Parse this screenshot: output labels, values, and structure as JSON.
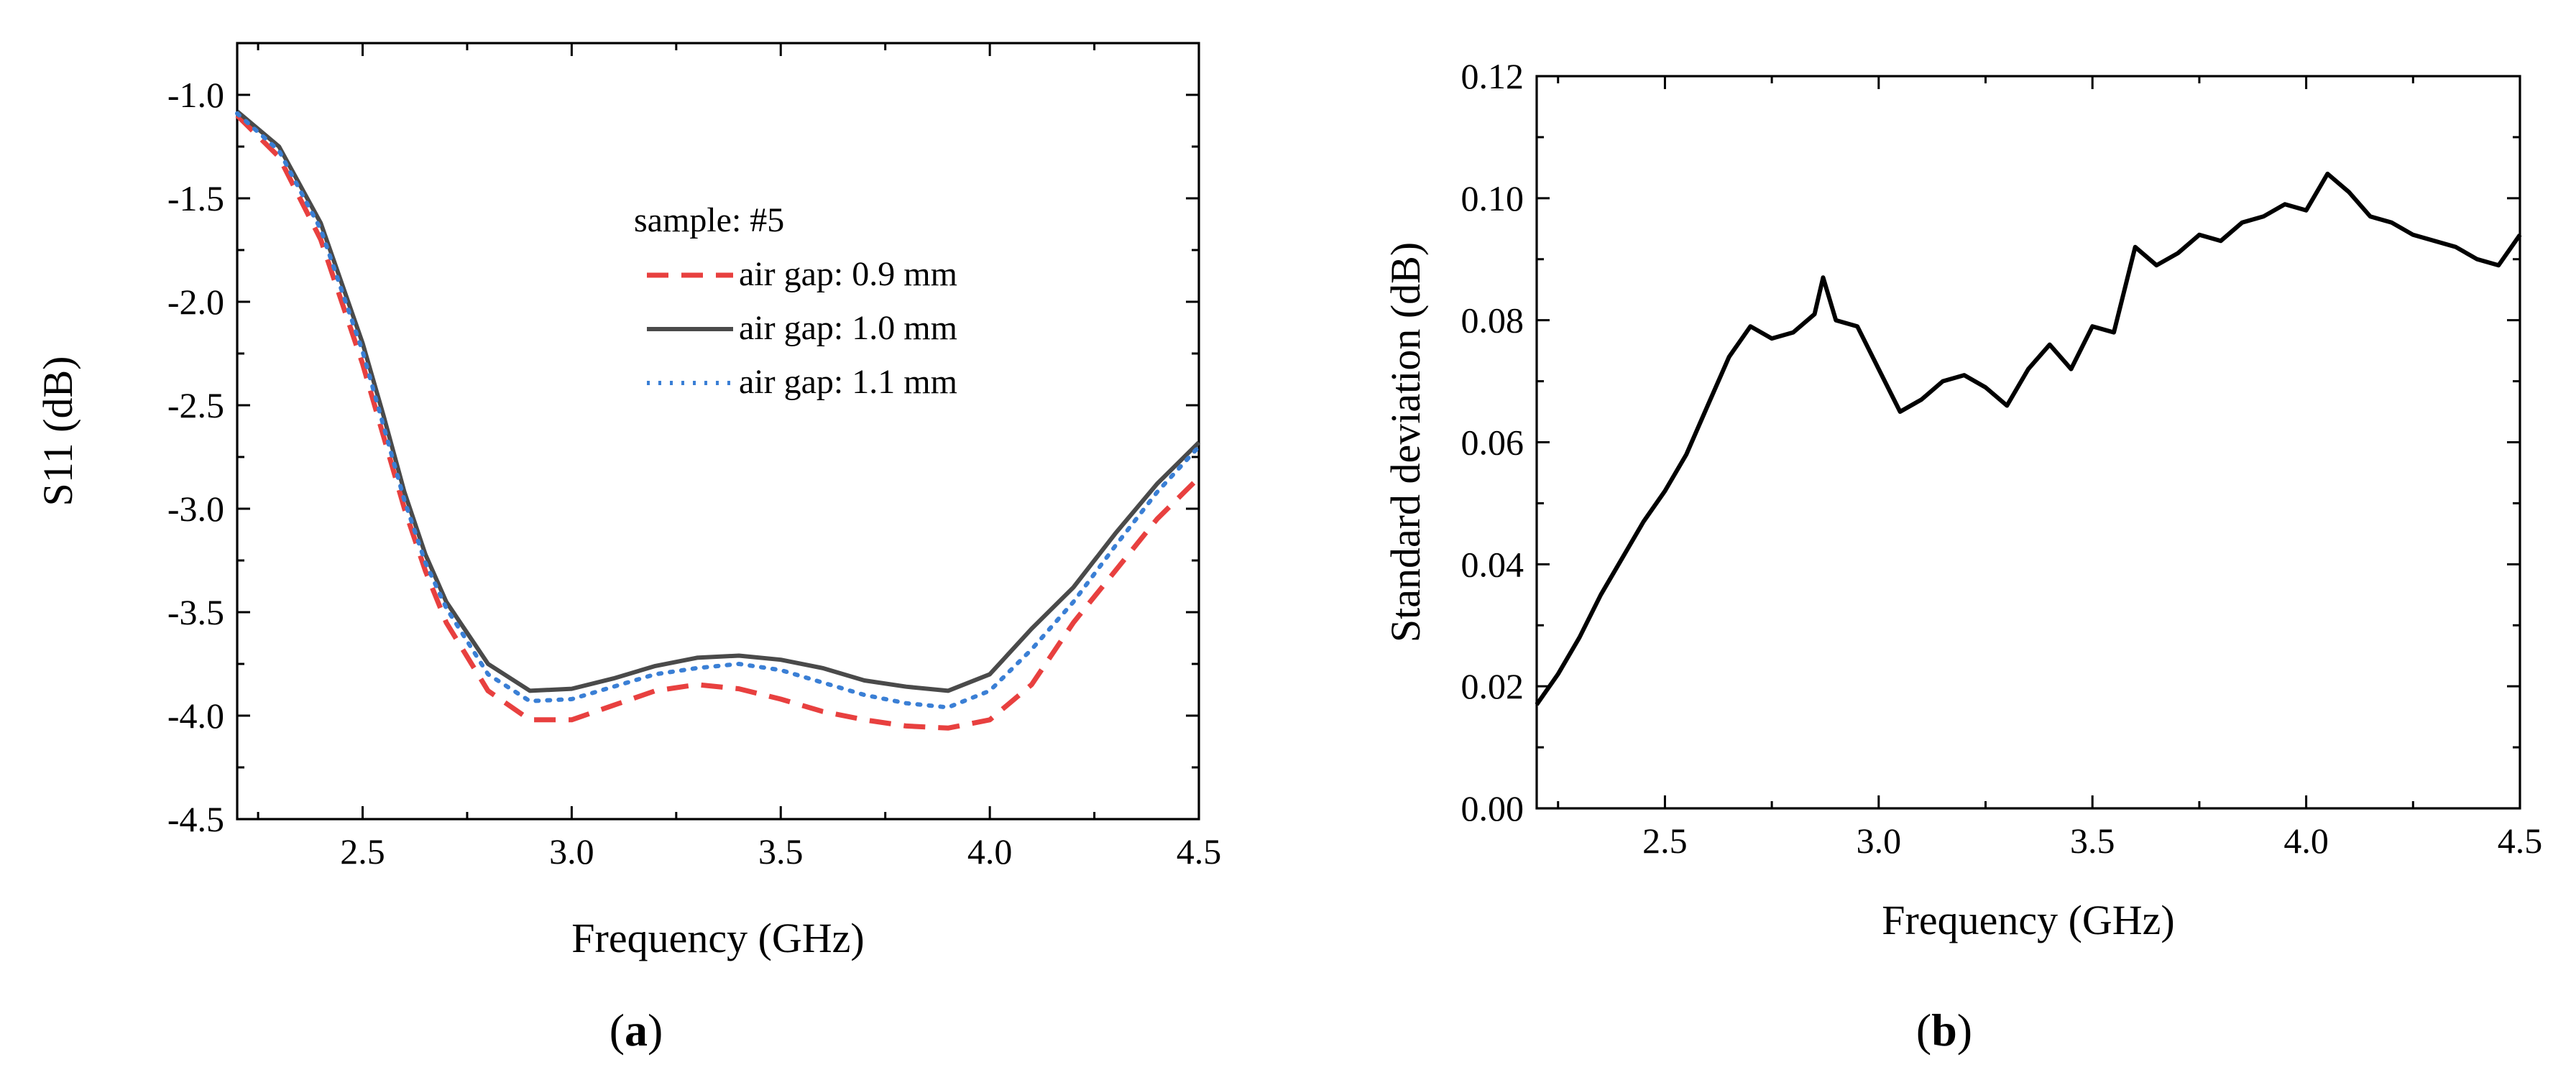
{
  "chart_data": [
    {
      "type": "line",
      "panel_label": "(a)",
      "panel_letter": "a",
      "xlabel": "Frequency (GHz)",
      "ylabel": "S11 (dB)",
      "xlim": [
        2.2,
        4.5
      ],
      "ylim": [
        -4.5,
        -0.75
      ],
      "xticks": [
        2.5,
        3.0,
        3.5,
        4.0,
        4.5
      ],
      "xtick_labels": [
        "2.5",
        "3.0",
        "3.5",
        "4.0",
        "4.5"
      ],
      "yticks": [
        -4.5,
        -4.0,
        -3.5,
        -3.0,
        -2.5,
        -2.0,
        -1.5,
        -1.0
      ],
      "ytick_labels": [
        "-4.5",
        "-4.0",
        "-3.5",
        "-3.0",
        "-2.5",
        "-2.0",
        "-1.5",
        "-1.0"
      ],
      "grid": false,
      "legend": {
        "title": "sample: #5",
        "placement": "center-right"
      },
      "series": [
        {
          "name": "air gap: 0.9 mm",
          "color": "#e8403f",
          "style": "dashed",
          "x": [
            2.2,
            2.3,
            2.4,
            2.5,
            2.55,
            2.6,
            2.65,
            2.7,
            2.8,
            2.9,
            3.0,
            3.1,
            3.2,
            3.3,
            3.4,
            3.5,
            3.6,
            3.7,
            3.8,
            3.9,
            4.0,
            4.1,
            4.2,
            4.3,
            4.4,
            4.5
          ],
          "y": [
            -1.1,
            -1.3,
            -1.7,
            -2.3,
            -2.65,
            -3.0,
            -3.3,
            -3.55,
            -3.88,
            -4.02,
            -4.02,
            -3.95,
            -3.88,
            -3.85,
            -3.87,
            -3.92,
            -3.98,
            -4.02,
            -4.05,
            -4.06,
            -4.02,
            -3.85,
            -3.55,
            -3.3,
            -3.05,
            -2.85
          ]
        },
        {
          "name": "air gap: 1.0 mm",
          "color": "#4a4a4a",
          "style": "solid",
          "x": [
            2.2,
            2.3,
            2.4,
            2.5,
            2.55,
            2.6,
            2.65,
            2.7,
            2.8,
            2.9,
            3.0,
            3.1,
            3.2,
            3.3,
            3.4,
            3.5,
            3.6,
            3.7,
            3.8,
            3.9,
            4.0,
            4.1,
            4.2,
            4.3,
            4.4,
            4.5
          ],
          "y": [
            -1.08,
            -1.25,
            -1.62,
            -2.2,
            -2.55,
            -2.92,
            -3.22,
            -3.45,
            -3.75,
            -3.88,
            -3.87,
            -3.82,
            -3.76,
            -3.72,
            -3.71,
            -3.73,
            -3.77,
            -3.83,
            -3.86,
            -3.88,
            -3.8,
            -3.58,
            -3.38,
            -3.12,
            -2.88,
            -2.68
          ]
        },
        {
          "name": "air gap: 1.1 mm",
          "color": "#3a7fd5",
          "style": "dotted",
          "x": [
            2.2,
            2.3,
            2.4,
            2.5,
            2.55,
            2.6,
            2.65,
            2.7,
            2.8,
            2.9,
            3.0,
            3.1,
            3.2,
            3.3,
            3.4,
            3.5,
            3.6,
            3.7,
            3.8,
            3.9,
            4.0,
            4.1,
            4.2,
            4.3,
            4.4,
            4.5
          ],
          "y": [
            -1.09,
            -1.27,
            -1.65,
            -2.24,
            -2.6,
            -2.96,
            -3.26,
            -3.48,
            -3.8,
            -3.93,
            -3.92,
            -3.86,
            -3.8,
            -3.77,
            -3.75,
            -3.78,
            -3.84,
            -3.9,
            -3.94,
            -3.96,
            -3.88,
            -3.68,
            -3.45,
            -3.18,
            -2.92,
            -2.7
          ]
        }
      ]
    },
    {
      "type": "line",
      "panel_label": "(b)",
      "panel_letter": "b",
      "xlabel": "Frequency (GHz)",
      "ylabel": "Standard deviation (dB)",
      "xlim": [
        2.2,
        4.5
      ],
      "ylim": [
        0.0,
        0.12
      ],
      "xticks": [
        2.5,
        3.0,
        3.5,
        4.0,
        4.5
      ],
      "xtick_labels": [
        "2.5",
        "3.0",
        "3.5",
        "4.0",
        "4.5"
      ],
      "yticks": [
        0.0,
        0.02,
        0.04,
        0.06,
        0.08,
        0.1,
        0.12
      ],
      "ytick_labels": [
        "0.00",
        "0.02",
        "0.04",
        "0.06",
        "0.08",
        "0.10",
        "0.12"
      ],
      "grid": false,
      "series": [
        {
          "color": "#000000",
          "style": "solid",
          "x": [
            2.2,
            2.25,
            2.3,
            2.35,
            2.4,
            2.45,
            2.5,
            2.55,
            2.6,
            2.65,
            2.7,
            2.75,
            2.8,
            2.85,
            2.87,
            2.9,
            2.95,
            3.0,
            3.05,
            3.1,
            3.15,
            3.2,
            3.25,
            3.3,
            3.35,
            3.4,
            3.45,
            3.5,
            3.55,
            3.6,
            3.65,
            3.7,
            3.75,
            3.8,
            3.85,
            3.9,
            3.95,
            4.0,
            4.05,
            4.1,
            4.15,
            4.2,
            4.25,
            4.3,
            4.35,
            4.4,
            4.45,
            4.5
          ],
          "y": [
            0.017,
            0.022,
            0.028,
            0.035,
            0.041,
            0.047,
            0.052,
            0.058,
            0.066,
            0.074,
            0.079,
            0.077,
            0.078,
            0.081,
            0.087,
            0.08,
            0.079,
            0.072,
            0.065,
            0.067,
            0.07,
            0.071,
            0.069,
            0.066,
            0.072,
            0.076,
            0.072,
            0.079,
            0.078,
            0.092,
            0.089,
            0.091,
            0.094,
            0.093,
            0.096,
            0.097,
            0.099,
            0.098,
            0.104,
            0.101,
            0.097,
            0.096,
            0.094,
            0.093,
            0.092,
            0.09,
            0.089,
            0.094
          ]
        }
      ]
    }
  ]
}
